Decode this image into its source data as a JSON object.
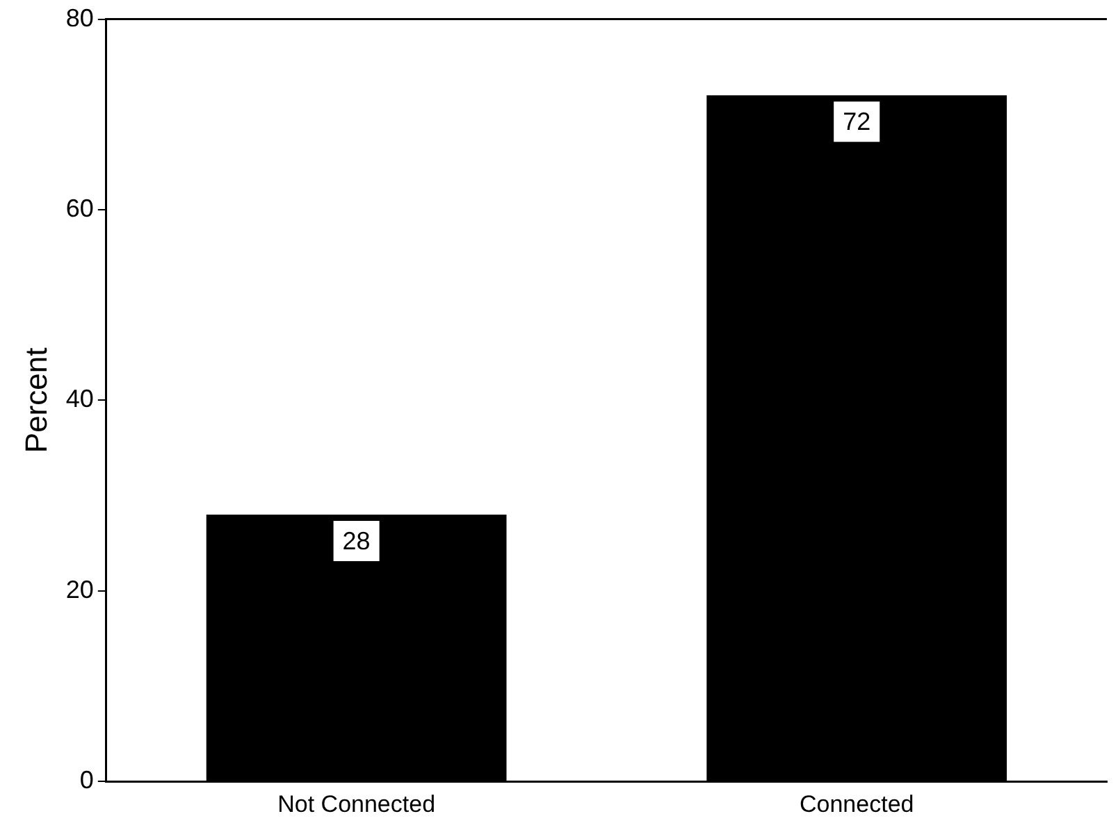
{
  "chart_data": {
    "type": "bar",
    "ylabel": "Percent",
    "categories": [
      "Not Connected",
      "Connected"
    ],
    "values": [
      28,
      72
    ],
    "color": "#000000",
    "ylim": [
      0,
      80
    ],
    "yticks": [
      0,
      20,
      40,
      60,
      80
    ],
    "grid": false,
    "legend": false,
    "data_labels": true
  }
}
